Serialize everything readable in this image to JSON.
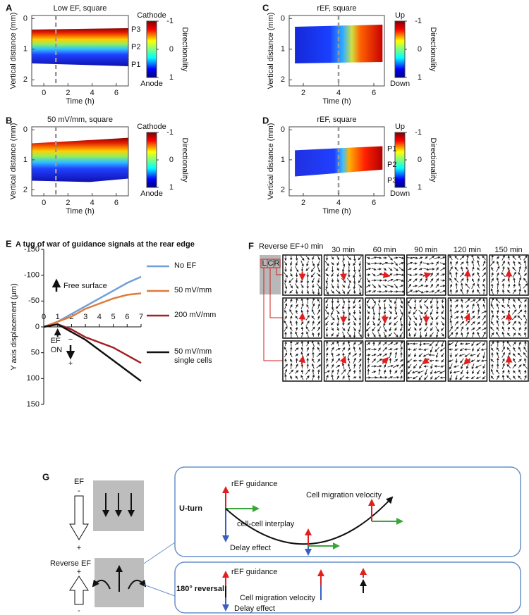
{
  "panel_labels": [
    "A",
    "B",
    "C",
    "D",
    "E",
    "F",
    "G"
  ],
  "chart_data": [
    {
      "type": "heatmap",
      "title": "Low EF, square",
      "x_label": "Time (h)",
      "y_label": "Vertical  distance (mm)",
      "xlim": [
        -1,
        7
      ],
      "xticks": [
        0,
        2,
        4,
        6
      ],
      "ylim": [
        -0.1,
        2.2
      ],
      "yticks": [
        0,
        1,
        2
      ],
      "y_inverted": true,
      "vline": 1,
      "colorbar": {
        "label": "Directionality",
        "top_label": "Cathode",
        "bottom_label": "Anode",
        "lim": [
          -1,
          1
        ],
        "ticks": [
          -1,
          0,
          1
        ]
      },
      "traces": [
        {
          "name": "P3",
          "color": "#b0b0b0"
        },
        {
          "name": "P2",
          "color": "#e8903a"
        },
        {
          "name": "P1",
          "color": "#a020a0"
        }
      ]
    },
    {
      "type": "heatmap",
      "title": "50 mV/mm, square",
      "x_label": "Time (h)",
      "y_label": "Vertical  distance (mm)",
      "xlim": [
        -1,
        7
      ],
      "xticks": [
        0,
        2,
        4,
        6
      ],
      "ylim": [
        -0.1,
        2.2
      ],
      "yticks": [
        0,
        1,
        2
      ],
      "y_inverted": true,
      "vline": 1,
      "colorbar": {
        "label": "Directionality",
        "top_label": "Cathode",
        "bottom_label": "Anode",
        "lim": [
          -1,
          1
        ],
        "ticks": [
          -1,
          0,
          1
        ]
      },
      "traces": []
    },
    {
      "type": "heatmap",
      "title": "rEF, square",
      "x_label": "Time (h)",
      "y_label": "Vertical  distance (mm)",
      "xlim": [
        1.2,
        6.6
      ],
      "xticks": [
        2,
        4,
        6
      ],
      "ylim": [
        -0.1,
        2.2
      ],
      "yticks": [
        0,
        1,
        2
      ],
      "y_inverted": true,
      "vline": 4,
      "colorbar": {
        "label": "Directionality",
        "top_label": "Up",
        "bottom_label": "Down",
        "lim": [
          -1,
          1
        ],
        "ticks": [
          -1,
          0,
          1
        ]
      },
      "traces": []
    },
    {
      "type": "heatmap",
      "title": "rEF, square",
      "x_label": "Time (h)",
      "y_label": "Vertical  distance (mm)",
      "xlim": [
        1.2,
        6.6
      ],
      "xticks": [
        2,
        4,
        6
      ],
      "ylim": [
        -0.1,
        2.2
      ],
      "yticks": [
        0,
        1,
        2
      ],
      "y_inverted": true,
      "vline": 4,
      "colorbar": {
        "label": "Directionality",
        "top_label": "Up",
        "bottom_label": "Down",
        "lim": [
          -1,
          1
        ],
        "ticks": [
          -1,
          0,
          1
        ]
      },
      "traces": [
        {
          "name": "P1",
          "color": "#a020a0"
        },
        {
          "name": "P2",
          "color": "#e8903a"
        },
        {
          "name": "P3",
          "color": "#b0b0b0"
        }
      ]
    },
    {
      "type": "line",
      "title": "A tug of war of guidance signals at the rear edge",
      "y_label": "Y axis displacement (μm)",
      "x": [
        0,
        1,
        2,
        3,
        4,
        5,
        6,
        7
      ],
      "xlim": [
        0,
        7
      ],
      "xticks": [
        0,
        1,
        2,
        3,
        4,
        5,
        6,
        7
      ],
      "ylim": [
        -150,
        150
      ],
      "yticks": [
        -150,
        -100,
        -50,
        0,
        50,
        100,
        150
      ],
      "y_inverted": true,
      "series": [
        {
          "name": "No EF",
          "color": "#6f9fd8",
          "values": [
            0,
            -10,
            -25,
            -40,
            -55,
            -70,
            -85,
            -97
          ]
        },
        {
          "name": "50 mV/mm",
          "color": "#e07b39",
          "values": [
            0,
            -10,
            -20,
            -35,
            -45,
            -55,
            -62,
            -65
          ]
        },
        {
          "name": "200 mV/mm",
          "color": "#a31f23",
          "values": [
            0,
            -5,
            5,
            20,
            30,
            40,
            55,
            70
          ]
        },
        {
          "name": "50 mV/mm single cells",
          "color": "#111111",
          "values": [
            0,
            -5,
            10,
            25,
            45,
            65,
            85,
            105
          ]
        }
      ],
      "annotations": [
        "Free surface",
        "EF ON",
        "−",
        "+"
      ]
    }
  ],
  "panel_f": {
    "title": "Reverse EF+0 min",
    "time_labels": [
      "30 min",
      "60 min",
      "90 min",
      "120 min",
      "150 min"
    ],
    "regions": [
      "L",
      "C",
      "R"
    ]
  },
  "panel_g": {
    "top_label": "EF",
    "top_minus": "-",
    "top_plus": "+",
    "reverse_label": "Reverse EF",
    "reverse_plus": "+",
    "reverse_minus": "-",
    "uturn": {
      "title": "U-turn",
      "guidance": "rEF guidance",
      "interplay": "cell-cell interplay",
      "velocity": "Cell migration velocity",
      "delay": "Delay effect"
    },
    "reversal": {
      "title": "180° reversal",
      "guidance": "rEF guidance",
      "velocity": "Cell migration velocity",
      "delay": "Delay effect"
    }
  }
}
